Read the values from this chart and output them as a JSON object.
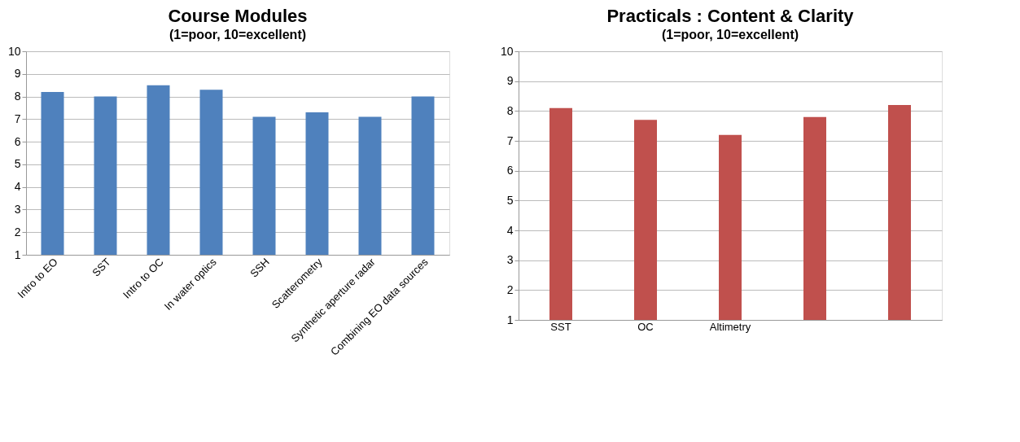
{
  "chart_data": [
    {
      "type": "bar",
      "title": "Course Modules",
      "subtitle": "(1=poor, 10=excellent)",
      "categories": [
        "Intro to EO",
        "SST",
        "Intro to OC",
        "In water optics",
        "SSH",
        "Scatterometry",
        "Synthetic aperture radar",
        "Combining EO data sources"
      ],
      "values": [
        8.2,
        8.0,
        8.5,
        8.3,
        7.1,
        7.3,
        7.1,
        8.0
      ],
      "color": "#4f81bd",
      "ylim": [
        1,
        10
      ],
      "yticks": [
        1,
        2,
        3,
        4,
        5,
        6,
        7,
        8,
        9,
        10
      ],
      "grid": "y"
    },
    {
      "type": "bar",
      "title": "Practicals : Content & Clarity",
      "subtitle": "(1=poor, 10=excellent)",
      "categories": [
        "SST",
        "OC",
        "Altimetry",
        null,
        null
      ],
      "values": [
        8.1,
        7.7,
        7.2,
        7.8,
        8.2
      ],
      "color": "#c0504d",
      "ylim": [
        1,
        10
      ],
      "yticks": [
        1,
        2,
        3,
        4,
        5,
        6,
        7,
        8,
        9,
        10
      ],
      "grid": "y"
    }
  ]
}
